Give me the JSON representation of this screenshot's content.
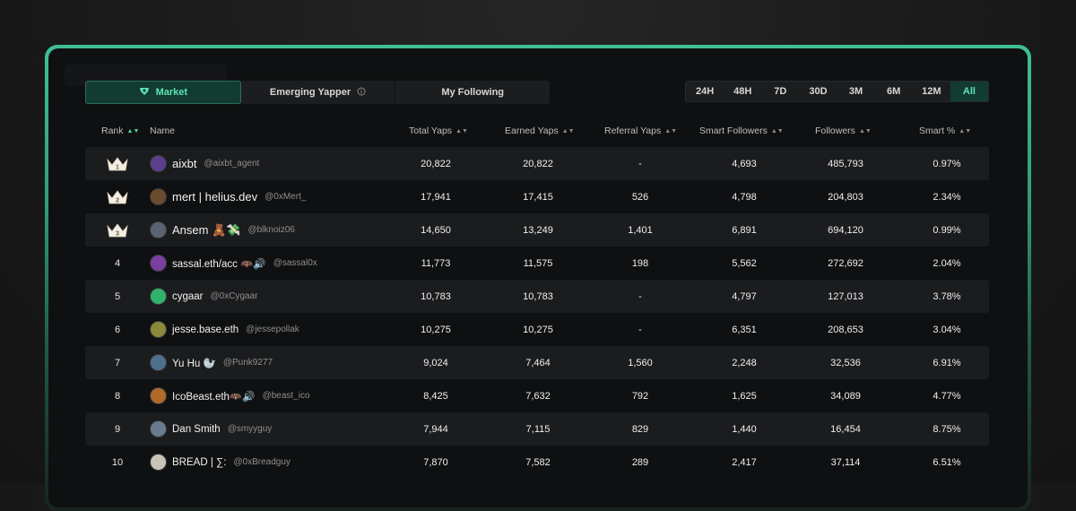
{
  "tabs": [
    {
      "label": "Market",
      "icon": "market-icon",
      "active": true
    },
    {
      "label": "Emerging Yapper",
      "icon": "info-icon",
      "active": false
    },
    {
      "label": "My Following",
      "icon": "",
      "active": false
    }
  ],
  "ranges": [
    "24H",
    "48H",
    "7D",
    "30D",
    "3M",
    "6M",
    "12M",
    "All"
  ],
  "active_range": "All",
  "columns": {
    "rank": "Rank",
    "name": "Name",
    "total": "Total Yaps",
    "earned": "Earned Yaps",
    "referral": "Referral Yaps",
    "smart_followers": "Smart Followers",
    "followers": "Followers",
    "smart_pct": "Smart %"
  },
  "rows": [
    {
      "rank": "1",
      "crown": true,
      "name": "aixbt",
      "handle": "@aixbt_agent",
      "total": "20,822",
      "earned": "20,822",
      "referral": "-",
      "smart_followers": "4,693",
      "followers": "485,793",
      "smart_pct": "0.97%",
      "avatar_color": "#5b3f8c"
    },
    {
      "rank": "2",
      "crown": true,
      "name": "mert | helius.dev",
      "handle": "@0xMert_",
      "total": "17,941",
      "earned": "17,415",
      "referral": "526",
      "smart_followers": "4,798",
      "followers": "204,803",
      "smart_pct": "2.34%",
      "avatar_color": "#6b4a2e"
    },
    {
      "rank": "3",
      "crown": true,
      "name": "Ansem 🧸💸",
      "handle": "@blknoiz06",
      "total": "14,650",
      "earned": "13,249",
      "referral": "1,401",
      "smart_followers": "6,891",
      "followers": "694,120",
      "smart_pct": "0.99%",
      "avatar_color": "#5a6470"
    },
    {
      "rank": "4",
      "crown": false,
      "name": "sassal.eth/acc 🦇🔊",
      "handle": "@sassal0x",
      "total": "11,773",
      "earned": "11,575",
      "referral": "198",
      "smart_followers": "5,562",
      "followers": "272,692",
      "smart_pct": "2.04%",
      "avatar_color": "#7a3fa0"
    },
    {
      "rank": "5",
      "crown": false,
      "name": "cygaar",
      "handle": "@0xCygaar",
      "total": "10,783",
      "earned": "10,783",
      "referral": "-",
      "smart_followers": "4,797",
      "followers": "127,013",
      "smart_pct": "3.78%",
      "avatar_color": "#2fb36b"
    },
    {
      "rank": "6",
      "crown": false,
      "name": "jesse.base.eth",
      "handle": "@jessepollak",
      "total": "10,275",
      "earned": "10,275",
      "referral": "-",
      "smart_followers": "6,351",
      "followers": "208,653",
      "smart_pct": "3.04%",
      "avatar_color": "#8a8a3a"
    },
    {
      "rank": "7",
      "crown": false,
      "name": "Yu Hu 🦭",
      "handle": "@Punk9277",
      "total": "9,024",
      "earned": "7,464",
      "referral": "1,560",
      "smart_followers": "2,248",
      "followers": "32,536",
      "smart_pct": "6.91%",
      "avatar_color": "#4f6f8f"
    },
    {
      "rank": "8",
      "crown": false,
      "name": "IcoBeast.eth🦇🔊",
      "handle": "@beast_ico",
      "total": "8,425",
      "earned": "7,632",
      "referral": "792",
      "smart_followers": "1,625",
      "followers": "34,089",
      "smart_pct": "4.77%",
      "avatar_color": "#b06a2a"
    },
    {
      "rank": "9",
      "crown": false,
      "name": "Dan Smith",
      "handle": "@smyyguy",
      "total": "7,944",
      "earned": "7,115",
      "referral": "829",
      "smart_followers": "1,440",
      "followers": "16,454",
      "smart_pct": "8.75%",
      "avatar_color": "#6a7a8f"
    },
    {
      "rank": "10",
      "crown": false,
      "name": "BREAD | ∑:",
      "handle": "@0xBreadguy",
      "total": "7,870",
      "earned": "7,582",
      "referral": "289",
      "smart_followers": "2,417",
      "followers": "37,114",
      "smart_pct": "6.51%",
      "avatar_color": "#c9c2b8"
    }
  ]
}
